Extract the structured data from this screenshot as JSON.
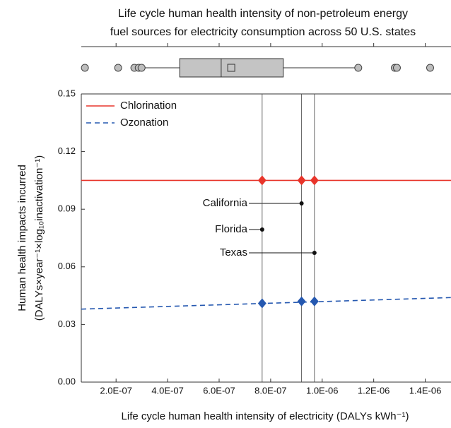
{
  "chart_data": {
    "type": "line",
    "title_lines": [
      "Life cycle human health intensity of non-petroleum energy",
      "fuel sources for electricity consumption across 50 U.S. states"
    ],
    "x_label": "Life cycle human health intensity of electricity (DALYs kWh⁻¹)",
    "y_label_lines": [
      "Human health impacts incurred",
      "(DALYs×year⁻¹×log₁₀inactivation⁻¹)"
    ],
    "xlim": [
      6.5e-08,
      1.5e-06
    ],
    "ylim": [
      0,
      0.15
    ],
    "xticks": [
      {
        "value": 2e-07,
        "label": "2.0E-07"
      },
      {
        "value": 4e-07,
        "label": "4.0E-07"
      },
      {
        "value": 6e-07,
        "label": "6.0E-07"
      },
      {
        "value": 8e-07,
        "label": "8.0E-07"
      },
      {
        "value": 1e-06,
        "label": "1.0E-06"
      },
      {
        "value": 1.2e-06,
        "label": "1.2E-06"
      },
      {
        "value": 1.4e-06,
        "label": "1.4E-06"
      }
    ],
    "yticks": [
      {
        "value": 0,
        "label": "0.00"
      },
      {
        "value": 0.03,
        "label": "0.03"
      },
      {
        "value": 0.06,
        "label": "0.06"
      },
      {
        "value": 0.09,
        "label": "0.09"
      },
      {
        "value": 0.12,
        "label": "0.12"
      },
      {
        "value": 0.15,
        "label": "0.15"
      }
    ],
    "legend_position": "upper left",
    "series": [
      {
        "name": "Chlorination",
        "color": "#e8352b",
        "dashed": false,
        "x": [
          6.5e-08,
          1.5e-06
        ],
        "values": [
          0.105,
          0.105
        ],
        "marker_x": [
          7.67e-07,
          9.2e-07,
          9.7e-07
        ],
        "marker_values": [
          0.105,
          0.105,
          0.105
        ]
      },
      {
        "name": "Ozonation",
        "color": "#2558b0",
        "dashed": true,
        "x": [
          6.5e-08,
          1.5e-06
        ],
        "values": [
          0.038,
          0.044
        ],
        "marker_x": [
          7.67e-07,
          9.2e-07,
          9.7e-07
        ],
        "marker_values": [
          0.041,
          0.042,
          0.042
        ]
      }
    ],
    "states": [
      {
        "name": "California",
        "x": 9.2e-07,
        "y": 0.093
      },
      {
        "name": "Florida",
        "x": 7.67e-07,
        "y": 0.0794
      },
      {
        "name": "Texas",
        "x": 9.7e-07,
        "y": 0.0673
      }
    ],
    "boxplot": {
      "whisker_low": 2.96e-07,
      "q1": 4.47e-07,
      "median": 6.08e-07,
      "mean": 6.47e-07,
      "q3": 8.49e-07,
      "whisker_high": 1.145e-06,
      "outliers": [
        7.9e-08,
        2.08e-07,
        2.71e-07,
        2.88e-07,
        2.99e-07,
        1.14e-06,
        1.282e-06,
        1.29e-06,
        1.419e-06
      ]
    }
  }
}
